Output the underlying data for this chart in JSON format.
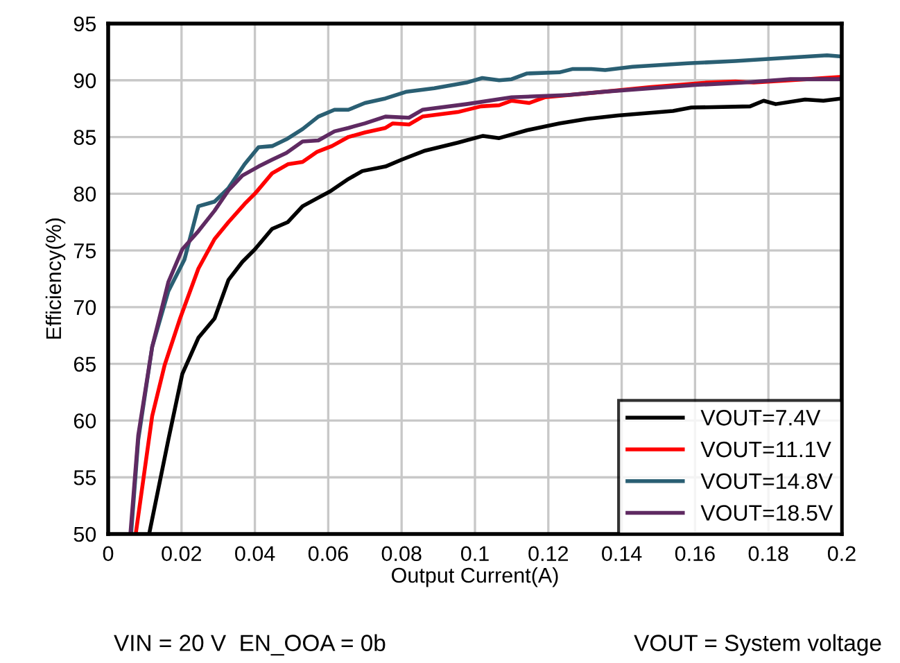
{
  "chart_data": {
    "type": "line",
    "xlabel": "Output Current(A)",
    "ylabel": "Efficiency(%)",
    "xlim": [
      0,
      0.2
    ],
    "xticks": [
      0,
      0.02,
      0.04,
      0.06,
      0.08,
      0.1,
      0.12,
      0.14,
      0.16,
      0.18,
      0.2
    ],
    "ylim": [
      50,
      95
    ],
    "yticks": [
      50,
      55,
      60,
      65,
      70,
      75,
      80,
      85,
      90,
      95
    ],
    "grid": true,
    "legend": "bottom right",
    "marker": "none",
    "line_style": "solid",
    "annotations": [
      "VIN = 20 V  EN_OOA = 0b",
      "VOUT = System voltage"
    ],
    "series": [
      {
        "name": "VOUT=7.4V",
        "color": "#000000",
        "x": [
          0.0113,
          0.0164,
          0.0202,
          0.0246,
          0.029,
          0.0328,
          0.0366,
          0.04,
          0.0447,
          0.049,
          0.053,
          0.057,
          0.0605,
          0.0655,
          0.0693,
          0.0756,
          0.08,
          0.0864,
          0.0953,
          0.1022,
          0.1066,
          0.1142,
          0.123,
          0.1305,
          0.139,
          0.154,
          0.159,
          0.175,
          0.1787,
          0.182,
          0.19,
          0.195,
          0.2
        ],
        "values": [
          50.2,
          58.3,
          64.1,
          67.3,
          69.0,
          72.4,
          74.0,
          75.1,
          76.9,
          77.5,
          78.9,
          79.6,
          80.2,
          81.3,
          82.0,
          82.4,
          83.0,
          83.8,
          84.5,
          85.1,
          84.9,
          85.6,
          86.2,
          86.6,
          86.9,
          87.3,
          87.6,
          87.7,
          88.2,
          87.9,
          88.3,
          88.2,
          88.4
        ]
      },
      {
        "name": "VOUT=11.1V",
        "color": "#ff0000",
        "x": [
          0.0076,
          0.012,
          0.0154,
          0.0196,
          0.0246,
          0.029,
          0.0328,
          0.0372,
          0.04,
          0.0447,
          0.049,
          0.053,
          0.057,
          0.061,
          0.0655,
          0.07,
          0.0756,
          0.0776,
          0.082,
          0.0857,
          0.0953,
          0.1016,
          0.1066,
          0.11,
          0.1148,
          0.119,
          0.1355,
          0.148,
          0.1633,
          0.171,
          0.176,
          0.186,
          0.2
        ],
        "values": [
          50.2,
          60.4,
          64.9,
          69.0,
          73.4,
          76.0,
          77.5,
          79.1,
          80.0,
          81.8,
          82.6,
          82.8,
          83.7,
          84.2,
          85.0,
          85.4,
          85.8,
          86.2,
          86.1,
          86.8,
          87.2,
          87.7,
          87.8,
          88.2,
          88.0,
          88.5,
          89.0,
          89.4,
          89.8,
          89.9,
          89.8,
          90.0,
          90.3
        ]
      },
      {
        "name": "VOUT=14.8V",
        "color": "#2a5f73",
        "x": [
          0.0063,
          0.0082,
          0.012,
          0.0164,
          0.0208,
          0.0246,
          0.029,
          0.0328,
          0.0372,
          0.041,
          0.0447,
          0.0486,
          0.053,
          0.0573,
          0.0617,
          0.0655,
          0.07,
          0.0756,
          0.0814,
          0.0889,
          0.0977,
          0.102,
          0.1066,
          0.11,
          0.1142,
          0.123,
          0.1267,
          0.1317,
          0.1355,
          0.143,
          0.158,
          0.171,
          0.186,
          0.196,
          0.2
        ],
        "values": [
          50.2,
          58.3,
          66.5,
          71.4,
          74.2,
          78.9,
          79.3,
          80.5,
          82.6,
          84.1,
          84.2,
          84.8,
          85.7,
          86.8,
          87.4,
          87.4,
          88.0,
          88.4,
          89.0,
          89.3,
          89.8,
          90.2,
          90.0,
          90.1,
          90.6,
          90.7,
          91.0,
          91.0,
          90.9,
          91.2,
          91.5,
          91.7,
          92.0,
          92.2,
          92.1
        ]
      },
      {
        "name": "VOUT=18.5V",
        "color": "#5f2a62",
        "x": [
          0.0061,
          0.0082,
          0.012,
          0.0164,
          0.0202,
          0.0246,
          0.029,
          0.0328,
          0.0366,
          0.041,
          0.0447,
          0.0486,
          0.053,
          0.0573,
          0.0617,
          0.0655,
          0.07,
          0.0756,
          0.082,
          0.0857,
          0.0977,
          0.11,
          0.1254,
          0.1355,
          0.1608,
          0.1733,
          0.186,
          0.2
        ],
        "values": [
          50.2,
          58.7,
          66.5,
          72.2,
          75.1,
          76.7,
          78.5,
          80.3,
          81.6,
          82.4,
          83.0,
          83.6,
          84.6,
          84.7,
          85.5,
          85.8,
          86.2,
          86.8,
          86.7,
          87.4,
          87.9,
          88.5,
          88.7,
          89.0,
          89.6,
          89.8,
          90.1,
          90.1
        ]
      }
    ]
  }
}
